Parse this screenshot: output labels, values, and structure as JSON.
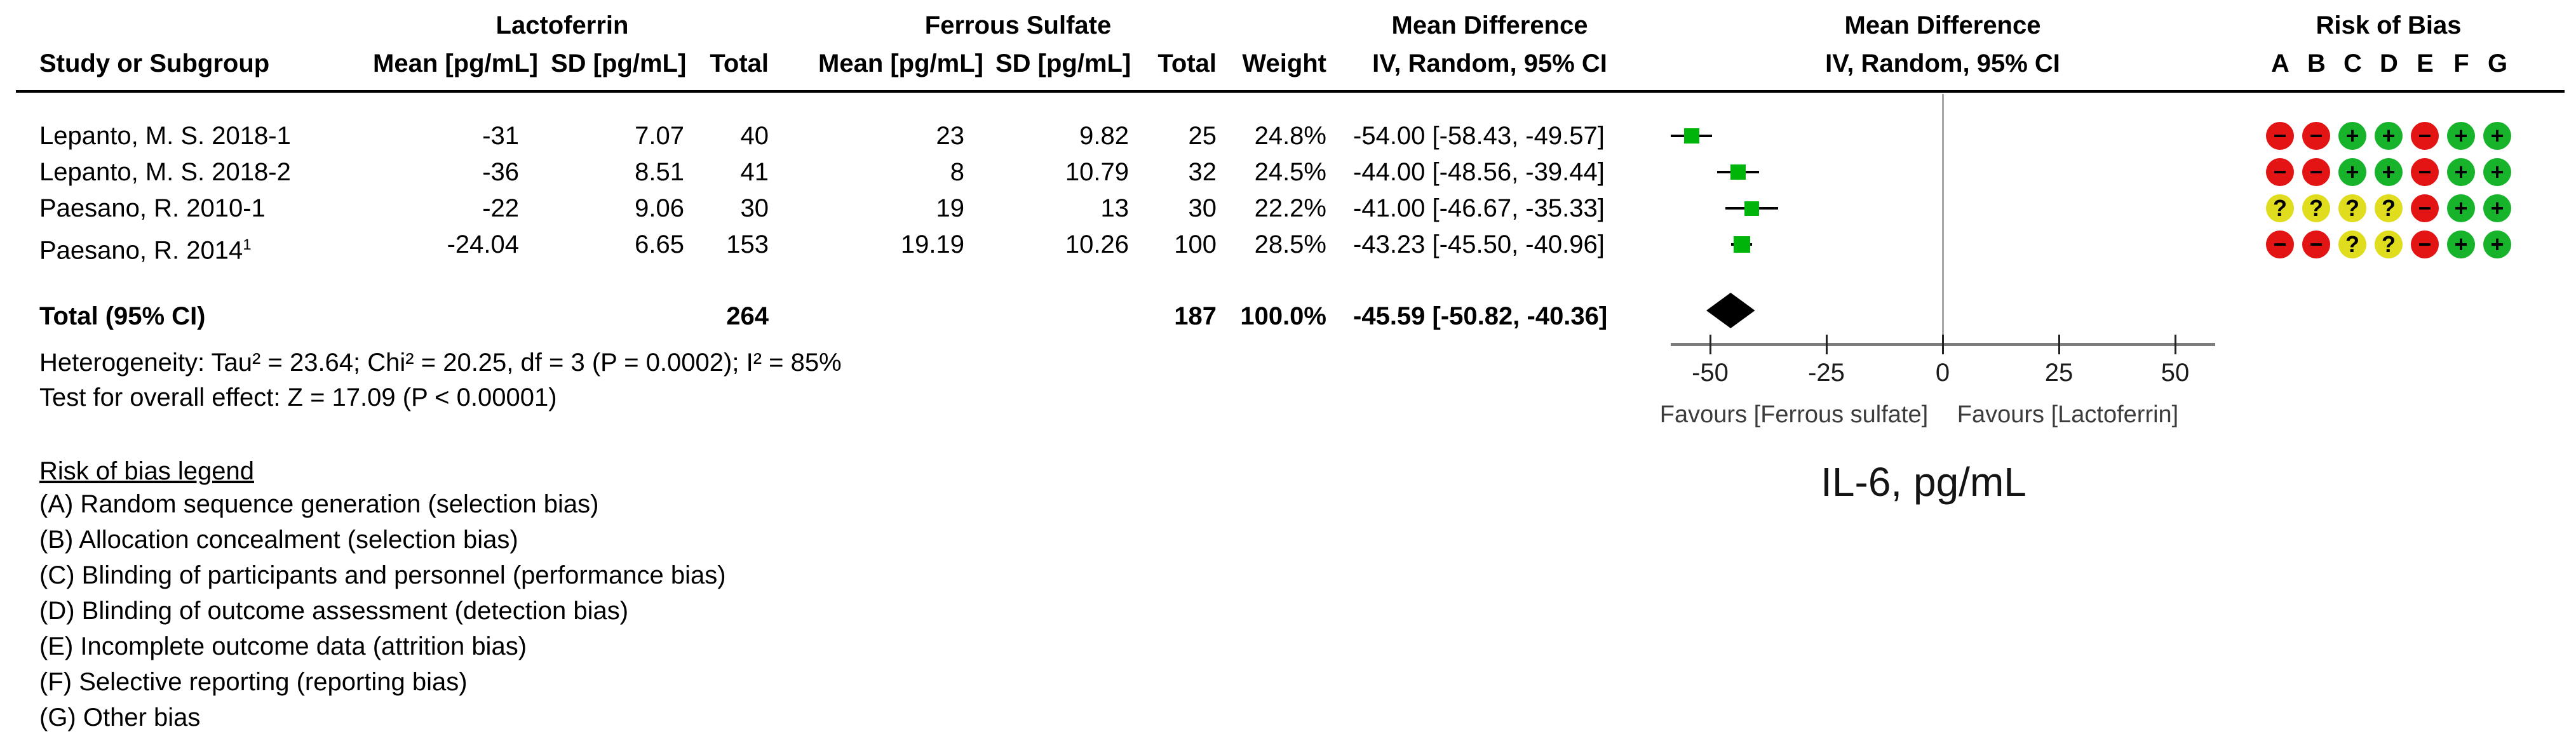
{
  "header": {
    "group1_label": "Lactoferrin",
    "group2_label": "Ferrous Sulfate",
    "md_text_label_line1": "Mean Difference",
    "md_text_label_line2": "IV, Random, 95% CI",
    "md_plot_label_line1": "Mean Difference",
    "md_plot_label_line2": "IV, Random, 95% CI",
    "rob_label": "Risk of Bias",
    "rob_letters": [
      "A",
      "B",
      "C",
      "D",
      "E",
      "F",
      "G"
    ],
    "col_study": "Study or Subgroup",
    "col_mean1": "Mean [pg/mL]",
    "col_sd1": "SD [pg/mL]",
    "col_total1": "Total",
    "col_mean2": "Mean [pg/mL]",
    "col_sd2": "SD [pg/mL]",
    "col_total2": "Total",
    "col_weight": "Weight"
  },
  "studies": [
    {
      "name": "Lepanto, M. S. 2018-1",
      "sup": "",
      "lf_mean": "-31",
      "lf_sd": "7.07",
      "lf_total": "40",
      "fs_mean": "23",
      "fs_sd": "9.82",
      "fs_total": "25",
      "weight": "24.8%",
      "ci_text": "-54.00 [-58.43, -49.57]",
      "md": -54.0,
      "low": -58.43,
      "high": -49.57,
      "weight_val": 24.8,
      "rob": [
        "-",
        "-",
        "+",
        "+",
        "-",
        "+",
        "+"
      ]
    },
    {
      "name": "Lepanto, M. S. 2018-2",
      "sup": "",
      "lf_mean": "-36",
      "lf_sd": "8.51",
      "lf_total": "41",
      "fs_mean": "8",
      "fs_sd": "10.79",
      "fs_total": "32",
      "weight": "24.5%",
      "ci_text": "-44.00 [-48.56, -39.44]",
      "md": -44.0,
      "low": -48.56,
      "high": -39.44,
      "weight_val": 24.5,
      "rob": [
        "-",
        "-",
        "+",
        "+",
        "-",
        "+",
        "+"
      ]
    },
    {
      "name": "Paesano, R. 2010-1",
      "sup": "",
      "lf_mean": "-22",
      "lf_sd": "9.06",
      "lf_total": "30",
      "fs_mean": "19",
      "fs_sd": "13",
      "fs_total": "30",
      "weight": "22.2%",
      "ci_text": "-41.00 [-46.67, -35.33]",
      "md": -41.0,
      "low": -46.67,
      "high": -35.33,
      "weight_val": 22.2,
      "rob": [
        "?",
        "?",
        "?",
        "?",
        "-",
        "+",
        "+"
      ]
    },
    {
      "name": "Paesano, R. 2014",
      "sup": "1",
      "lf_mean": "-24.04",
      "lf_sd": "6.65",
      "lf_total": "153",
      "fs_mean": "19.19",
      "fs_sd": "10.26",
      "fs_total": "100",
      "weight": "28.5%",
      "ci_text": "-43.23 [-45.50, -40.96]",
      "md": -43.23,
      "low": -45.5,
      "high": -40.96,
      "weight_val": 28.5,
      "rob": [
        "-",
        "-",
        "?",
        "?",
        "-",
        "+",
        "+"
      ]
    }
  ],
  "total": {
    "label": "Total (95% CI)",
    "lf_total": "264",
    "fs_total": "187",
    "weight": "100.0%",
    "ci_text": "-45.59 [-50.82, -40.36]",
    "md": -45.59,
    "low": -50.82,
    "high": -40.36
  },
  "footer": {
    "heterogeneity": "Heterogeneity: Tau² = 23.64; Chi² = 20.25, df = 3 (P = 0.0002); I² = 85%",
    "overall_effect": "Test for overall effect: Z = 17.09 (P < 0.00001)"
  },
  "axis": {
    "ticks": [
      -50,
      -25,
      0,
      25,
      50
    ],
    "favours_left": "Favours [Ferrous sulfate]",
    "favours_right": "Favours [Lactoferrin]"
  },
  "outcome_label": "IL-6, pg/mL",
  "rob_legend": {
    "title": "Risk of bias legend",
    "items": [
      "(A) Random sequence generation (selection bias)",
      "(B) Allocation concealment (selection bias)",
      "(C) Blinding of participants and personnel (performance bias)",
      "(D) Blinding of outcome assessment (detection bias)",
      "(E) Incomplete outcome data (attrition bias)",
      "(F) Selective reporting (reporting bias)",
      "(G) Other bias"
    ]
  },
  "colors": {
    "low_risk_green": "#17b32a",
    "high_risk_red": "#e31414",
    "unclear_yellow": "#e0dc1e",
    "effect_square_green": "#00b50a",
    "diamond_black": "#000000"
  },
  "chart_data": {
    "type": "scatter",
    "subtype": "forest-plot",
    "title": "IL-6, pg/mL",
    "effect_measure": "Mean Difference, IV, Random, 95% CI",
    "x": [
      -54.0,
      -44.0,
      -41.0,
      -43.23
    ],
    "categories": [
      "Lepanto, M. S. 2018-1",
      "Lepanto, M. S. 2018-2",
      "Paesano, R. 2010-1",
      "Paesano, R. 2014"
    ],
    "series": [
      {
        "name": "Mean Difference",
        "values": [
          -54.0,
          -44.0,
          -41.0,
          -43.23
        ]
      },
      {
        "name": "CI lower",
        "values": [
          -58.43,
          -48.56,
          -46.67,
          -45.5
        ]
      },
      {
        "name": "CI upper",
        "values": [
          -49.57,
          -39.44,
          -35.33,
          -40.96
        ]
      },
      {
        "name": "Weight %",
        "values": [
          24.8,
          24.5,
          22.2,
          28.5
        ]
      }
    ],
    "total": {
      "name": "Total (95% CI)",
      "value": -45.59,
      "ci": [
        -50.82,
        -40.36
      ]
    },
    "xlabel": "Favours [Ferrous sulfate] / Favours [Lactoferrin]",
    "ylabel": "",
    "xlim": [
      -62,
      62
    ],
    "x_ticks": [
      -50,
      -25,
      0,
      25,
      50
    ],
    "grid": false,
    "legend_position": "none"
  }
}
